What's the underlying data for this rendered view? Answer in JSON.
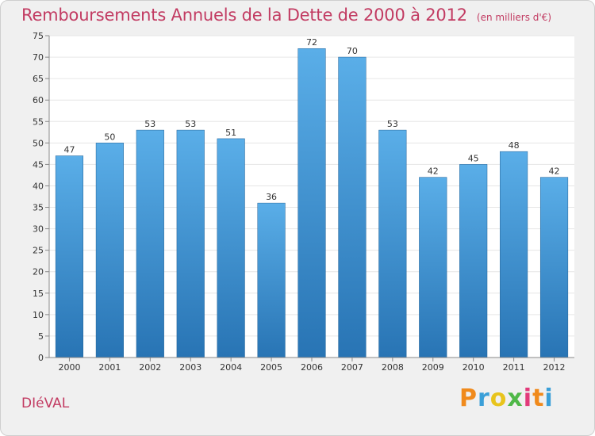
{
  "header": {
    "title": "Remboursements Annuels de la Dette de 2000 à 2012",
    "unit": "(en milliers d'€)"
  },
  "footer": {
    "commune": "DIéVAL",
    "brand": "Proxiti"
  },
  "colors": {
    "bar_top": "#5aaee8",
    "bar_bottom": "#2874b4",
    "title": "#c23b62",
    "background": "#f0f0f0",
    "plot_background": "#ffffff",
    "grid": "#e6e6e6"
  },
  "chart_data": {
    "type": "bar",
    "categories": [
      "2000",
      "2001",
      "2002",
      "2003",
      "2004",
      "2005",
      "2006",
      "2007",
      "2008",
      "2009",
      "2010",
      "2011",
      "2012"
    ],
    "values": [
      47,
      50,
      53,
      53,
      51,
      36,
      72,
      70,
      53,
      42,
      45,
      48,
      42
    ],
    "title": "Remboursements Annuels de la Dette de 2000 à 2012",
    "ylim": [
      0,
      75
    ],
    "yticks": [
      0,
      5,
      10,
      15,
      20,
      25,
      30,
      35,
      40,
      45,
      50,
      55,
      60,
      65,
      70,
      75
    ],
    "grid": true,
    "data_labels": true
  }
}
